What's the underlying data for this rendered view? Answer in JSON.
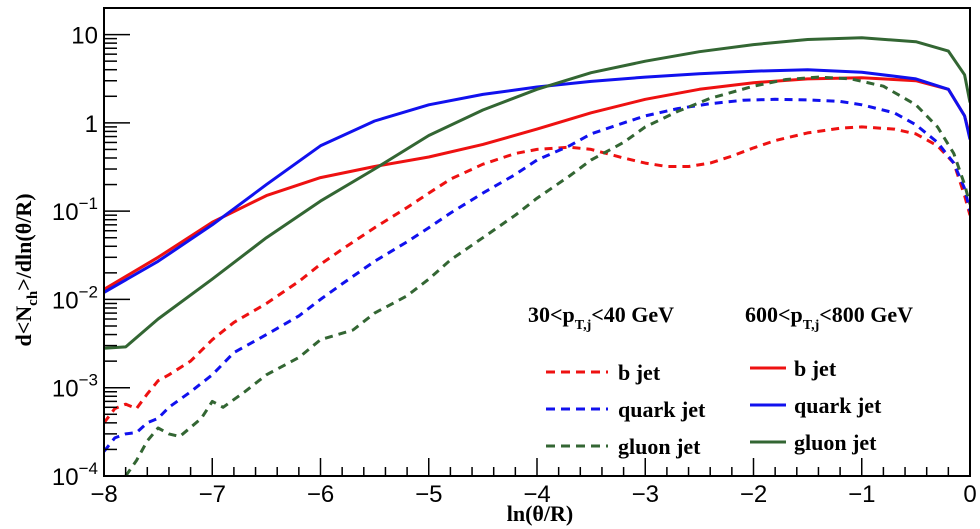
{
  "chart_data": {
    "type": "line",
    "title": "",
    "xlabel": "ln(θ/R)",
    "ylabel": "d<N_ch>/dln(θ/R)",
    "xlim": [
      -8,
      0
    ],
    "ylim": [
      0.0001,
      20
    ],
    "y_scale": "log",
    "grid": false,
    "legend_placement": "bottom-right",
    "x_ticks": [
      {
        "value": -8,
        "label": "−8"
      },
      {
        "value": -7,
        "label": "−7"
      },
      {
        "value": -6,
        "label": "−6"
      },
      {
        "value": -5,
        "label": "−5"
      },
      {
        "value": -4,
        "label": "−4"
      },
      {
        "value": -3,
        "label": "−3"
      },
      {
        "value": -2,
        "label": "−2"
      },
      {
        "value": -1,
        "label": "−1"
      },
      {
        "value": 0,
        "label": "0"
      }
    ],
    "y_ticks": [
      {
        "value": 0.0001,
        "base": "10",
        "exp": "−4"
      },
      {
        "value": 0.001,
        "base": "10",
        "exp": "−3"
      },
      {
        "value": 0.01,
        "base": "10",
        "exp": "−2"
      },
      {
        "value": 0.1,
        "base": "10",
        "exp": "−1"
      },
      {
        "value": 1,
        "base": "1",
        "exp": ""
      },
      {
        "value": 10,
        "base": "10",
        "exp": ""
      }
    ],
    "legend": {
      "low_header": {
        "pre": "30<p",
        "sub": "T,j",
        "post": "<40 GeV"
      },
      "high_header": {
        "pre": "600<p",
        "sub": "T,j",
        "post": "<800 GeV"
      },
      "labels": [
        "b jet",
        "quark jet",
        "gluon jet"
      ]
    },
    "series": [
      {
        "name": "b jet",
        "pt_bin": "600<pT,j<800 GeV",
        "color": "#ee1111",
        "dash": "solid",
        "x": [
          -8,
          -7.5,
          -7,
          -6.5,
          -6,
          -5.5,
          -5,
          -4.5,
          -4,
          -3.5,
          -3,
          -2.5,
          -2,
          -1.5,
          -1,
          -0.5,
          -0.2,
          -0.05,
          0
        ],
        "y": [
          0.013,
          0.03,
          0.075,
          0.15,
          0.24,
          0.32,
          0.41,
          0.57,
          0.85,
          1.3,
          1.85,
          2.4,
          2.85,
          3.15,
          3.25,
          3.0,
          2.4,
          1.2,
          0.7
        ]
      },
      {
        "name": "quark jet",
        "pt_bin": "600<pT,j<800 GeV",
        "color": "#1111ee",
        "dash": "solid",
        "x": [
          -8,
          -7.5,
          -7,
          -6.5,
          -6,
          -5.5,
          -5,
          -4.5,
          -4,
          -3.5,
          -3,
          -2.5,
          -2,
          -1.5,
          -1,
          -0.5,
          -0.2,
          -0.05,
          0
        ],
        "y": [
          0.012,
          0.027,
          0.07,
          0.2,
          0.55,
          1.05,
          1.6,
          2.1,
          2.55,
          2.95,
          3.3,
          3.6,
          3.85,
          4.0,
          3.75,
          3.15,
          2.4,
          1.2,
          0.65
        ]
      },
      {
        "name": "gluon jet",
        "pt_bin": "600<pT,j<800 GeV",
        "color": "#336633",
        "dash": "solid",
        "x": [
          -8,
          -7.8,
          -7.5,
          -7,
          -6.5,
          -6,
          -5.5,
          -5,
          -4.5,
          -4,
          -3.5,
          -3,
          -2.5,
          -2,
          -1.5,
          -1,
          -0.5,
          -0.2,
          -0.05,
          0
        ],
        "y": [
          0.0028,
          0.0029,
          0.006,
          0.017,
          0.05,
          0.13,
          0.3,
          0.72,
          1.4,
          2.4,
          3.7,
          5.0,
          6.4,
          7.7,
          8.8,
          9.2,
          8.3,
          6.5,
          3.5,
          1.7
        ]
      },
      {
        "name": "b jet",
        "pt_bin": "30<pT,j<40 GeV",
        "color": "#ee1111",
        "dash": "dashed",
        "x": [
          -8,
          -7.9,
          -7.8,
          -7.7,
          -7.6,
          -7.5,
          -7.4,
          -7.2,
          -7,
          -6.8,
          -6.5,
          -6.2,
          -6,
          -5.8,
          -5.5,
          -5.2,
          -5,
          -4.8,
          -4.5,
          -4.2,
          -4,
          -3.7,
          -3.5,
          -3.2,
          -3,
          -2.8,
          -2.6,
          -2.4,
          -2.2,
          -2,
          -1.8,
          -1.5,
          -1.2,
          -1,
          -0.7,
          -0.5,
          -0.3,
          -0.15,
          -0.05,
          0
        ],
        "y": [
          0.0004,
          0.00058,
          0.00065,
          0.00058,
          0.00085,
          0.0012,
          0.0014,
          0.002,
          0.0035,
          0.0055,
          0.009,
          0.016,
          0.025,
          0.037,
          0.065,
          0.11,
          0.16,
          0.23,
          0.34,
          0.45,
          0.5,
          0.53,
          0.5,
          0.4,
          0.35,
          0.32,
          0.32,
          0.35,
          0.42,
          0.52,
          0.63,
          0.77,
          0.87,
          0.9,
          0.85,
          0.75,
          0.55,
          0.35,
          0.15,
          0.09
        ]
      },
      {
        "name": "quark jet",
        "pt_bin": "30<pT,j<40 GeV",
        "color": "#1111ee",
        "dash": "dashed",
        "x": [
          -8,
          -7.9,
          -7.8,
          -7.7,
          -7.6,
          -7.5,
          -7.4,
          -7.2,
          -7,
          -6.8,
          -6.5,
          -6.2,
          -6,
          -5.8,
          -5.5,
          -5.2,
          -5,
          -4.8,
          -4.5,
          -4.2,
          -4,
          -3.7,
          -3.5,
          -3.2,
          -3,
          -2.7,
          -2.4,
          -2.1,
          -1.8,
          -1.5,
          -1.2,
          -1,
          -0.7,
          -0.5,
          -0.3,
          -0.15,
          -0.05,
          0
        ],
        "y": [
          0.00019,
          0.00027,
          0.0003,
          0.00031,
          0.0004,
          0.00045,
          0.0006,
          0.0009,
          0.0014,
          0.0025,
          0.004,
          0.0065,
          0.01,
          0.015,
          0.027,
          0.045,
          0.065,
          0.095,
          0.16,
          0.26,
          0.38,
          0.55,
          0.75,
          1.0,
          1.2,
          1.45,
          1.65,
          1.8,
          1.85,
          1.82,
          1.75,
          1.6,
          1.3,
          0.95,
          0.6,
          0.35,
          0.18,
          0.1
        ]
      },
      {
        "name": "gluon jet",
        "pt_bin": "30<pT,j<40 GeV",
        "color": "#336633",
        "dash": "dashed",
        "x": [
          -7.8,
          -7.7,
          -7.6,
          -7.5,
          -7.4,
          -7.3,
          -7.1,
          -7,
          -6.9,
          -6.7,
          -6.5,
          -6.2,
          -6,
          -5.7,
          -5.5,
          -5.2,
          -5,
          -4.8,
          -4.5,
          -4.2,
          -4,
          -3.7,
          -3.5,
          -3.2,
          -3,
          -2.7,
          -2.4,
          -2,
          -1.7,
          -1.4,
          -1.1,
          -0.8,
          -0.5,
          -0.3,
          -0.15,
          -0.05,
          0
        ],
        "y": [
          0.0001,
          0.00015,
          0.00025,
          0.00035,
          0.0003,
          0.00028,
          0.00045,
          0.0007,
          0.0006,
          0.0009,
          0.0014,
          0.0022,
          0.0035,
          0.0045,
          0.007,
          0.011,
          0.017,
          0.028,
          0.05,
          0.09,
          0.14,
          0.25,
          0.38,
          0.6,
          0.9,
          1.35,
          1.9,
          2.6,
          3.1,
          3.3,
          3.15,
          2.6,
          1.6,
          0.9,
          0.45,
          0.2,
          0.12
        ]
      }
    ]
  }
}
